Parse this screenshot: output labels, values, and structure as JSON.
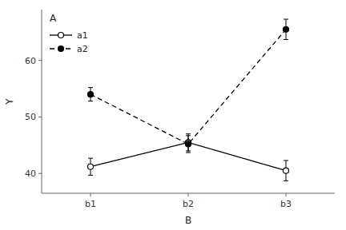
{
  "chart_data": {
    "type": "line",
    "x_label": "B",
    "y_label": "Y",
    "legend_title": "A",
    "categories": [
      "b1",
      "b2",
      "b3"
    ],
    "series": [
      {
        "name": "a1",
        "color": "#000000",
        "marker": "circle-open",
        "line_style": "solid",
        "values": [
          41.2,
          45.5,
          40.5
        ],
        "errors": [
          1.5,
          1.5,
          1.8
        ]
      },
      {
        "name": "a2",
        "color": "#000000",
        "marker": "circle",
        "line_style": "dashed",
        "values": [
          54.0,
          45.2,
          65.5
        ],
        "errors": [
          1.2,
          1.5,
          1.8
        ]
      }
    ],
    "ylim": [
      36.5,
      69
    ],
    "yticks": [
      40,
      50,
      60
    ],
    "grid": false,
    "legend": "upper left"
  }
}
